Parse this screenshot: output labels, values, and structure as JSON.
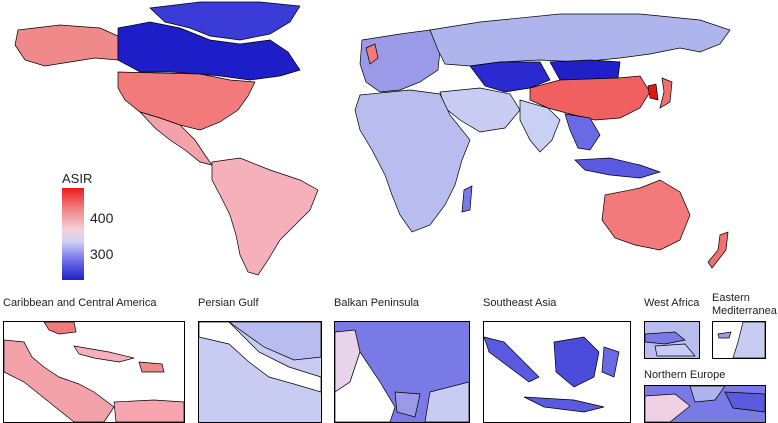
{
  "legend": {
    "title": "ASIR",
    "ticks": [
      {
        "label": "400",
        "value": 400
      },
      {
        "label": "300",
        "value": 300
      }
    ]
  },
  "insets": [
    {
      "title": "Caribbean and Central America"
    },
    {
      "title": "Persian Gulf"
    },
    {
      "title": "Balkan Peninsula"
    },
    {
      "title": "Southeast Asia"
    },
    {
      "title": "West Africa"
    },
    {
      "title": "Eastern\nMediterranea"
    },
    {
      "title": "Northern Europe"
    }
  ],
  "colors": {
    "high": "#ee1b1b",
    "mid_high": "#f08080",
    "mid": "#e8e4f4",
    "mid_low": "#8a8ae8",
    "low": "#2020c8"
  }
}
